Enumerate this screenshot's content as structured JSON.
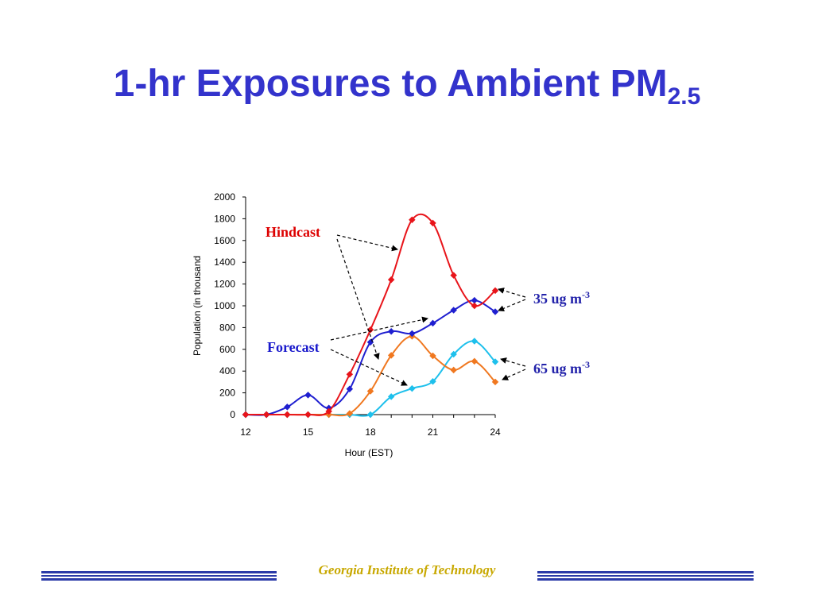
{
  "slide": {
    "title_main": "1-hr Exposures to Ambient PM",
    "title_sub": "2.5",
    "footer": "Georgia Institute of Technology"
  },
  "colors": {
    "title": "#3333cc",
    "footer_text": "#c8a800",
    "footer_rule": "#2b3aa8",
    "hindcast_label": "#dd0000",
    "forecast_label": "#1a1acc",
    "threshold_label": "#2222aa"
  },
  "chart_data": {
    "type": "line",
    "xlabel": "Hour (EST)",
    "ylabel": "Population (in thousand",
    "xlim": [
      12,
      24
    ],
    "ylim": [
      0,
      2000
    ],
    "x_ticks": [
      12,
      15,
      18,
      21,
      24
    ],
    "y_ticks": [
      0,
      200,
      400,
      600,
      800,
      1000,
      1200,
      1400,
      1600,
      1800,
      2000
    ],
    "grid": false,
    "x": [
      12,
      13,
      14,
      15,
      16,
      17,
      18,
      19,
      20,
      21,
      22,
      23,
      24
    ],
    "series": [
      {
        "color": "#e8141a",
        "values": [
          0,
          0,
          0,
          0,
          30,
          370,
          780,
          1240,
          1790,
          1760,
          1280,
          1000,
          1140
        ]
      },
      {
        "color": "#1f1fd0",
        "values": [
          0,
          0,
          70,
          180,
          60,
          235,
          665,
          765,
          745,
          840,
          960,
          1050,
          945
        ]
      },
      {
        "color": "#f07820",
        "values": [
          0,
          0,
          0,
          0,
          0,
          10,
          215,
          545,
          720,
          540,
          410,
          490,
          300
        ]
      },
      {
        "color": "#1ec0ec",
        "values": [
          0,
          0,
          0,
          0,
          0,
          0,
          0,
          165,
          240,
          305,
          555,
          675,
          485
        ]
      }
    ],
    "annotations": [
      {
        "text": "Hindcast",
        "color": "#dd0000"
      },
      {
        "text": "Forecast",
        "color": "#1a1acc"
      },
      {
        "text": "35 ug m",
        "sup": "-3",
        "color": "#2222aa"
      },
      {
        "text": "65 ug m",
        "sup": "-3",
        "color": "#2222aa"
      }
    ]
  }
}
